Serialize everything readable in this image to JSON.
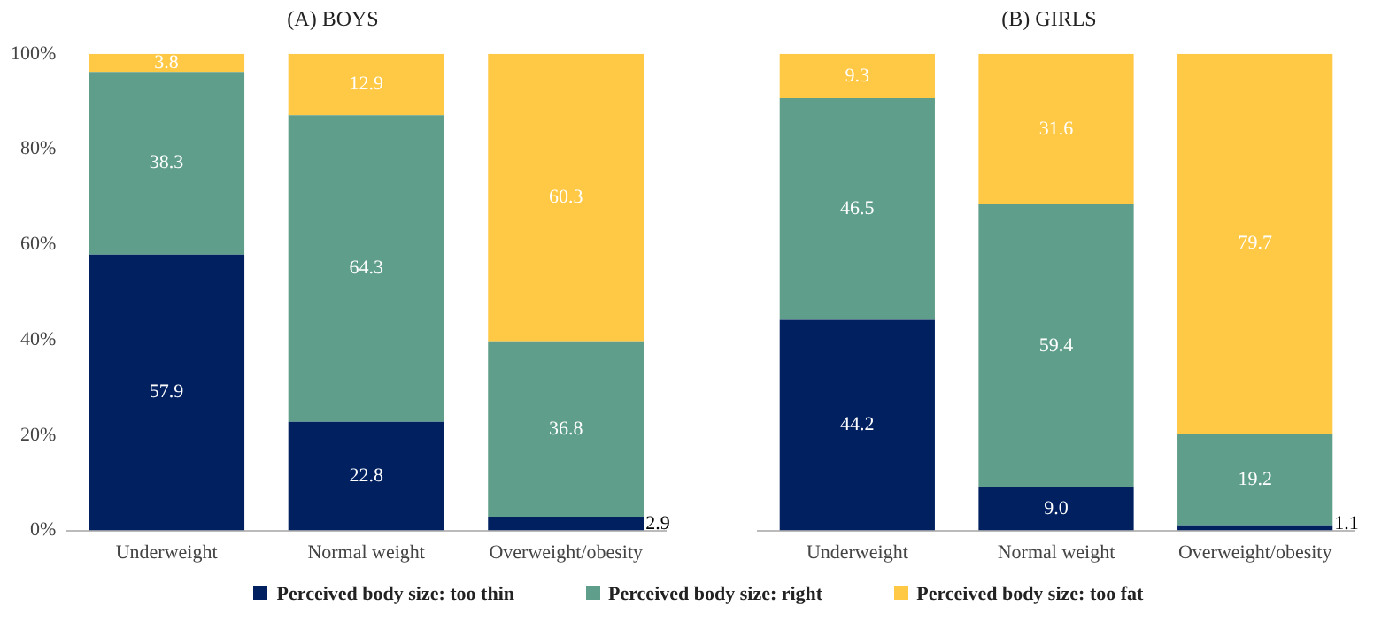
{
  "chart_data": [
    {
      "type": "bar",
      "title": "(A) BOYS",
      "categories": [
        "Underweight",
        "Normal weight",
        "Overweight/obesity"
      ],
      "stacked": true,
      "ylim": [
        0,
        100
      ],
      "yticks": [
        {
          "value": 0,
          "label": "0%"
        },
        {
          "value": 20,
          "label": "20%"
        },
        {
          "value": 40,
          "label": "40%"
        },
        {
          "value": 60,
          "label": "60%"
        },
        {
          "value": 80,
          "label": "80%"
        },
        {
          "value": 100,
          "label": "100%"
        }
      ],
      "legend": "bottom",
      "series": [
        {
          "name": "Perceived body size: too thin",
          "color": "#002060",
          "values": [
            57.9,
            22.8,
            2.9
          ],
          "value_labels": [
            "57.9",
            "22.8",
            "2.9"
          ]
        },
        {
          "name": "Perceived body size: right",
          "color": "#5f9e8a",
          "values": [
            38.3,
            64.3,
            36.8
          ],
          "value_labels": [
            "38.3",
            "64.3",
            "36.8"
          ]
        },
        {
          "name": "Perceived body size: too fat",
          "color": "#ffc845",
          "values": [
            3.8,
            12.9,
            60.3
          ],
          "value_labels": [
            "3.8",
            "12.9",
            "60.3"
          ]
        }
      ]
    },
    {
      "type": "bar",
      "title": "(B) GIRLS",
      "categories": [
        "Underweight",
        "Normal weight",
        "Overweight/obesity"
      ],
      "stacked": true,
      "ylim": [
        0,
        100
      ],
      "yticks": [
        {
          "value": 0,
          "label": null
        },
        {
          "value": 20,
          "label": null
        },
        {
          "value": 40,
          "label": null
        },
        {
          "value": 60,
          "label": null
        },
        {
          "value": 80,
          "label": null
        },
        {
          "value": 100,
          "label": null
        }
      ],
      "tick_labels": "x",
      "series": [
        {
          "color": "#002060",
          "values": [
            44.2,
            9.0,
            1.1
          ],
          "value_labels": [
            "44.2",
            "9.0",
            "1.1"
          ]
        },
        {
          "color": "#5f9e8a",
          "values": [
            46.5,
            59.4,
            19.2
          ],
          "value_labels": [
            "46.5",
            "59.4",
            "19.2"
          ]
        },
        {
          "color": "#ffc845",
          "values": [
            9.3,
            31.6,
            79.7
          ],
          "value_labels": [
            "9.3",
            "31.6",
            "79.7"
          ]
        }
      ]
    }
  ]
}
